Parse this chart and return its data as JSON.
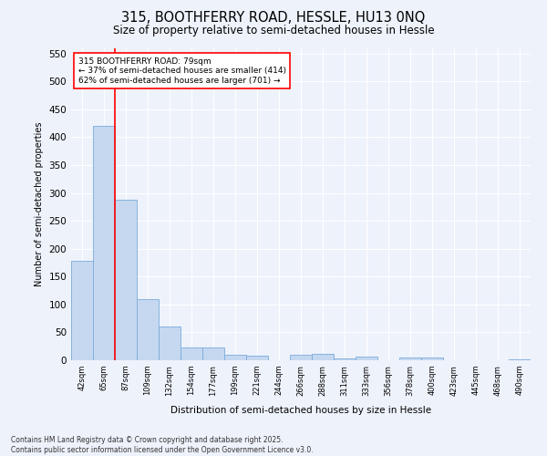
{
  "title_line1": "315, BOOTHFERRY ROAD, HESSLE, HU13 0NQ",
  "title_line2": "Size of property relative to semi-detached houses in Hessle",
  "xlabel": "Distribution of semi-detached houses by size in Hessle",
  "ylabel": "Number of semi-detached properties",
  "categories": [
    "42sqm",
    "65sqm",
    "87sqm",
    "109sqm",
    "132sqm",
    "154sqm",
    "177sqm",
    "199sqm",
    "221sqm",
    "244sqm",
    "266sqm",
    "288sqm",
    "311sqm",
    "333sqm",
    "356sqm",
    "378sqm",
    "400sqm",
    "423sqm",
    "445sqm",
    "468sqm",
    "490sqm"
  ],
  "values": [
    178,
    420,
    287,
    109,
    60,
    23,
    23,
    10,
    8,
    0,
    10,
    12,
    4,
    6,
    0,
    5,
    5,
    0,
    0,
    0,
    2
  ],
  "bar_color": "#c5d8f0",
  "bar_edge_color": "#7aabda",
  "annotation_text_line1": "315 BOOTHFERRY ROAD: 79sqm",
  "annotation_text_line2": "← 37% of semi-detached houses are smaller (414)",
  "annotation_text_line3": "62% of semi-detached houses are larger (701) →",
  "red_line_x": 1.5,
  "ylim": [
    0,
    560
  ],
  "yticks": [
    0,
    50,
    100,
    150,
    200,
    250,
    300,
    350,
    400,
    450,
    500,
    550
  ],
  "background_color": "#eef2fb",
  "grid_color": "#ffffff",
  "footer_line1": "Contains HM Land Registry data © Crown copyright and database right 2025.",
  "footer_line2": "Contains public sector information licensed under the Open Government Licence v3.0."
}
